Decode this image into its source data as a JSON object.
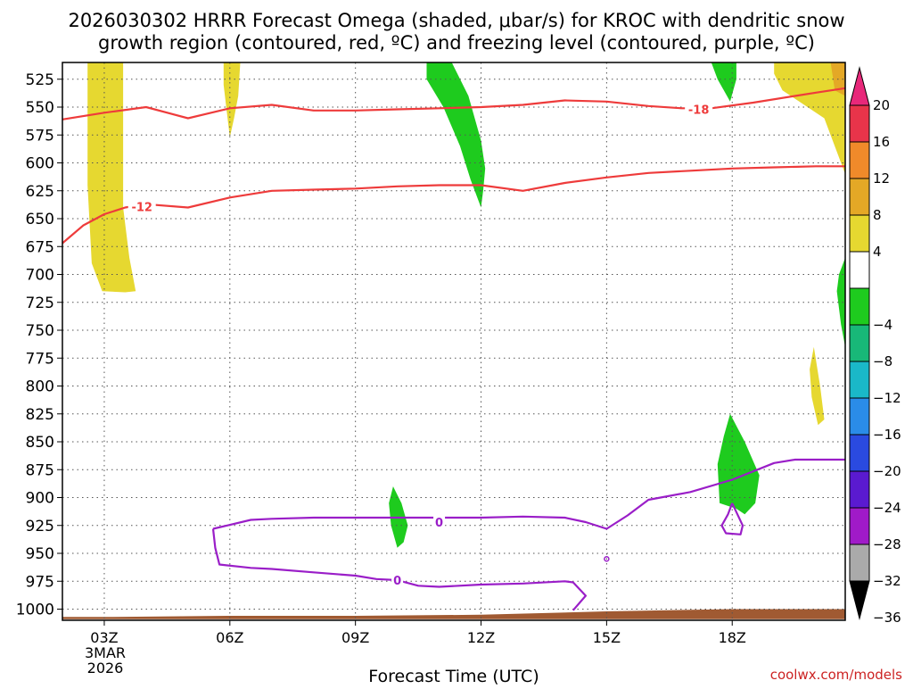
{
  "title_line1": "2026030302 HRRR Forecast Omega (shaded, μbar/s) for KROC with dendritic snow",
  "title_line2": "growth region (contoured, red, ºC) and freezing level (contoured, purple, ºC)",
  "xlabel": "Forecast Time (UTC)",
  "credit": "coolwx.com/models",
  "date_label": [
    "3MAR",
    "2026"
  ],
  "chart_data": {
    "type": "heatmap",
    "title": "2026030302 HRRR Forecast Omega (shaded, μbar/s) for KROC with dendritic snow growth region (contoured, red, ºC) and freezing level (contoured, purple, ºC)",
    "xlabel": "Forecast Time (UTC)",
    "ylabel": "",
    "x_range_hours": [
      2,
      20.7
    ],
    "y_range_hPa": [
      1010,
      510
    ],
    "y_scale": "linear, inverted",
    "grid": true,
    "x_ticks": [
      {
        "hour": 3,
        "label": "03Z"
      },
      {
        "hour": 6,
        "label": "06Z"
      },
      {
        "hour": 9,
        "label": "09Z"
      },
      {
        "hour": 12,
        "label": "12Z"
      },
      {
        "hour": 15,
        "label": "15Z"
      },
      {
        "hour": 18,
        "label": "18Z"
      }
    ],
    "y_ticks": [
      525,
      550,
      575,
      600,
      625,
      650,
      675,
      700,
      725,
      750,
      775,
      800,
      825,
      850,
      875,
      900,
      925,
      950,
      975,
      1000
    ],
    "colorbar": {
      "labels": [
        "20",
        "16",
        "12",
        "8",
        "4",
        "−4",
        "−8",
        "−12",
        "−16",
        "−20",
        "−24",
        "−28",
        "−32",
        "−36"
      ],
      "bins": [
        {
          "from": 16,
          "to": 20,
          "color": "#e8344a"
        },
        {
          "from": 12,
          "to": 16,
          "color": "#f08a2a"
        },
        {
          "from": 8,
          "to": 12,
          "color": "#e4a826"
        },
        {
          "from": 4,
          "to": 8,
          "color": "#e6d830"
        },
        {
          "from": -4,
          "to": 4,
          "color": "#ffffff"
        },
        {
          "from": -8,
          "to": -4,
          "color": "#1ecb1e"
        },
        {
          "from": -12,
          "to": -8,
          "color": "#18b878"
        },
        {
          "from": -16,
          "to": -12,
          "color": "#1ab8c8"
        },
        {
          "from": -20,
          "to": -16,
          "color": "#2a8ce8"
        },
        {
          "from": -24,
          "to": -20,
          "color": "#2a4ae0"
        },
        {
          "from": -28,
          "to": -24,
          "color": "#5a1ad0"
        },
        {
          "from": -32,
          "to": -28,
          "color": "#a01ac8"
        },
        {
          "from": -36,
          "to": -32,
          "color": "#aaaaaa"
        }
      ],
      "overflow_top_color": "#e8287a",
      "overflow_bottom_color": "#000000"
    },
    "shaded_regions": [
      {
        "name": "rising-air-12z",
        "color": "#1ecb1e",
        "points": [
          [
            10.7,
            510
          ],
          [
            11.3,
            510
          ],
          [
            11.7,
            540
          ],
          [
            12.0,
            580
          ],
          [
            12.1,
            605
          ],
          [
            12.05,
            625
          ],
          [
            12.0,
            640
          ],
          [
            11.75,
            615
          ],
          [
            11.5,
            585
          ],
          [
            11.1,
            550
          ],
          [
            10.7,
            525
          ]
        ]
      },
      {
        "name": "rising-air-18z-top",
        "color": "#1ecb1e",
        "points": [
          [
            17.5,
            510
          ],
          [
            18.1,
            510
          ],
          [
            18.1,
            525
          ],
          [
            17.95,
            545
          ],
          [
            17.65,
            525
          ]
        ]
      },
      {
        "name": "rising-air-10z",
        "color": "#1ecb1e",
        "points": [
          [
            9.9,
            890
          ],
          [
            10.1,
            905
          ],
          [
            10.25,
            925
          ],
          [
            10.15,
            940
          ],
          [
            10.0,
            945
          ],
          [
            9.85,
            925
          ],
          [
            9.8,
            905
          ]
        ]
      },
      {
        "name": "rising-air-18z-low",
        "color": "#1ecb1e",
        "points": [
          [
            17.95,
            825
          ],
          [
            18.3,
            850
          ],
          [
            18.65,
            880
          ],
          [
            18.55,
            905
          ],
          [
            18.3,
            915
          ],
          [
            18.1,
            910
          ],
          [
            17.7,
            905
          ],
          [
            17.65,
            870
          ],
          [
            17.8,
            845
          ]
        ]
      },
      {
        "name": "rising-air-right-edge",
        "color": "#1ecb1e",
        "points": [
          [
            20.55,
            700
          ],
          [
            20.7,
            685
          ],
          [
            20.7,
            765
          ],
          [
            20.6,
            745
          ],
          [
            20.5,
            715
          ]
        ]
      },
      {
        "name": "sinking-air-03z",
        "color": "#e6d830",
        "points": [
          [
            2.6,
            510
          ],
          [
            3.45,
            510
          ],
          [
            3.45,
            640
          ],
          [
            3.6,
            685
          ],
          [
            3.75,
            715
          ],
          [
            3.5,
            716
          ],
          [
            2.95,
            715
          ],
          [
            2.7,
            690
          ],
          [
            2.6,
            620
          ]
        ]
      },
      {
        "name": "sinking-air-06z",
        "color": "#e6d830",
        "points": [
          [
            5.85,
            510
          ],
          [
            6.25,
            510
          ],
          [
            6.2,
            540
          ],
          [
            6.1,
            560
          ],
          [
            6.0,
            577
          ],
          [
            5.93,
            555
          ],
          [
            5.85,
            530
          ]
        ]
      },
      {
        "name": "sinking-air-20z-top",
        "color": "#e6d830",
        "points": [
          [
            19.0,
            510
          ],
          [
            20.7,
            510
          ],
          [
            20.7,
            610
          ],
          [
            20.5,
            590
          ],
          [
            20.2,
            560
          ],
          [
            19.6,
            545
          ],
          [
            19.2,
            535
          ],
          [
            19.0,
            520
          ]
        ]
      },
      {
        "name": "sinking-air-20z-small",
        "color": "#e6d830",
        "points": [
          [
            19.95,
            765
          ],
          [
            20.1,
            800
          ],
          [
            20.2,
            830
          ],
          [
            20.05,
            835
          ],
          [
            19.9,
            810
          ],
          [
            19.85,
            785
          ]
        ]
      },
      {
        "name": "sinking-air-top-right-orange",
        "color": "#e4a826",
        "points": [
          [
            20.35,
            510
          ],
          [
            20.7,
            510
          ],
          [
            20.7,
            540
          ],
          [
            20.45,
            535
          ]
        ]
      }
    ],
    "terrain": {
      "color": "#a05a32",
      "points": [
        [
          2.0,
          1009
        ],
        [
          20.7,
          1009
        ],
        [
          20.7,
          1000
        ],
        [
          18.0,
          1000
        ],
        [
          15.0,
          1002
        ],
        [
          12.0,
          1005
        ],
        [
          9.0,
          1006
        ],
        [
          6.0,
          1006
        ],
        [
          3.0,
          1007
        ],
        [
          2.0,
          1007
        ]
      ]
    },
    "contours": [
      {
        "label": "-18",
        "label_at": [
          17.2,
          552
        ],
        "color": "#ee3b3b",
        "points": [
          [
            2.0,
            561
          ],
          [
            3.0,
            555
          ],
          [
            4.0,
            550
          ],
          [
            5.0,
            560
          ],
          [
            6.0,
            551
          ],
          [
            7.0,
            548
          ],
          [
            8.0,
            553
          ],
          [
            9.0,
            553
          ],
          [
            10.0,
            552
          ],
          [
            11.0,
            551
          ],
          [
            12.0,
            550
          ],
          [
            13.0,
            548
          ],
          [
            14.0,
            544
          ],
          [
            15.0,
            545
          ],
          [
            16.0,
            549
          ],
          [
            16.8,
            551
          ],
          [
            17.5,
            551
          ],
          [
            18.5,
            546
          ],
          [
            19.5,
            540
          ],
          [
            20.0,
            537
          ],
          [
            20.7,
            533
          ]
        ]
      },
      {
        "label": "-12",
        "label_at": [
          3.9,
          639
        ],
        "color": "#ee3b3b",
        "points": [
          [
            2.0,
            672
          ],
          [
            2.5,
            656
          ],
          [
            3.0,
            646
          ],
          [
            3.5,
            640
          ],
          [
            4.0,
            637
          ],
          [
            5.0,
            640
          ],
          [
            6.0,
            631
          ],
          [
            7.0,
            625
          ],
          [
            8.0,
            624
          ],
          [
            9.0,
            623
          ],
          [
            10.0,
            621
          ],
          [
            11.0,
            620
          ],
          [
            12.0,
            620
          ],
          [
            13.0,
            625
          ],
          [
            14.0,
            618
          ],
          [
            15.0,
            613
          ],
          [
            16.0,
            609
          ],
          [
            17.0,
            607
          ],
          [
            18.0,
            605
          ],
          [
            19.0,
            604
          ],
          [
            20.0,
            603
          ],
          [
            20.7,
            603
          ]
        ]
      },
      {
        "label": "0",
        "label_at": [
          11.0,
          922
        ],
        "color": "#9a1ec8",
        "points": [
          [
            5.6,
            928
          ],
          [
            6.5,
            920
          ],
          [
            7.0,
            919
          ],
          [
            8.0,
            918
          ],
          [
            9.0,
            918
          ],
          [
            10.0,
            918
          ],
          [
            11.0,
            918
          ],
          [
            12.0,
            918
          ],
          [
            13.0,
            917
          ],
          [
            14.0,
            918
          ],
          [
            14.5,
            922
          ],
          [
            15.0,
            928
          ],
          [
            15.5,
            916
          ],
          [
            16.0,
            902
          ],
          [
            17.0,
            895
          ],
          [
            18.0,
            884
          ],
          [
            19.0,
            869
          ],
          [
            19.5,
            866
          ],
          [
            20.0,
            866
          ],
          [
            20.7,
            866
          ]
        ]
      },
      {
        "label": "0",
        "label_at": [
          10.0,
          974
        ],
        "color": "#9a1ec8",
        "points": [
          [
            5.6,
            928
          ],
          [
            5.65,
            945
          ],
          [
            5.75,
            960
          ],
          [
            6.5,
            963
          ],
          [
            7.0,
            964
          ],
          [
            8.0,
            967
          ],
          [
            9.0,
            970
          ],
          [
            9.5,
            973
          ],
          [
            10.0,
            974
          ],
          [
            10.5,
            979
          ],
          [
            11.0,
            980
          ],
          [
            12.0,
            978
          ],
          [
            13.0,
            977
          ],
          [
            14.0,
            975
          ],
          [
            14.2,
            976
          ],
          [
            14.5,
            988
          ],
          [
            14.2,
            1001
          ]
        ]
      },
      {
        "label": "",
        "label_at": null,
        "color": "#9a1ec8",
        "points": [
          [
            18.0,
            905
          ],
          [
            18.25,
            925
          ],
          [
            18.2,
            933
          ],
          [
            17.85,
            932
          ],
          [
            17.75,
            925
          ],
          [
            17.9,
            915
          ],
          [
            18.0,
            905
          ]
        ]
      }
    ],
    "markers": [
      {
        "x": 15.0,
        "y": 955,
        "type": "small-circle",
        "color": "#9a1ec8"
      }
    ]
  }
}
